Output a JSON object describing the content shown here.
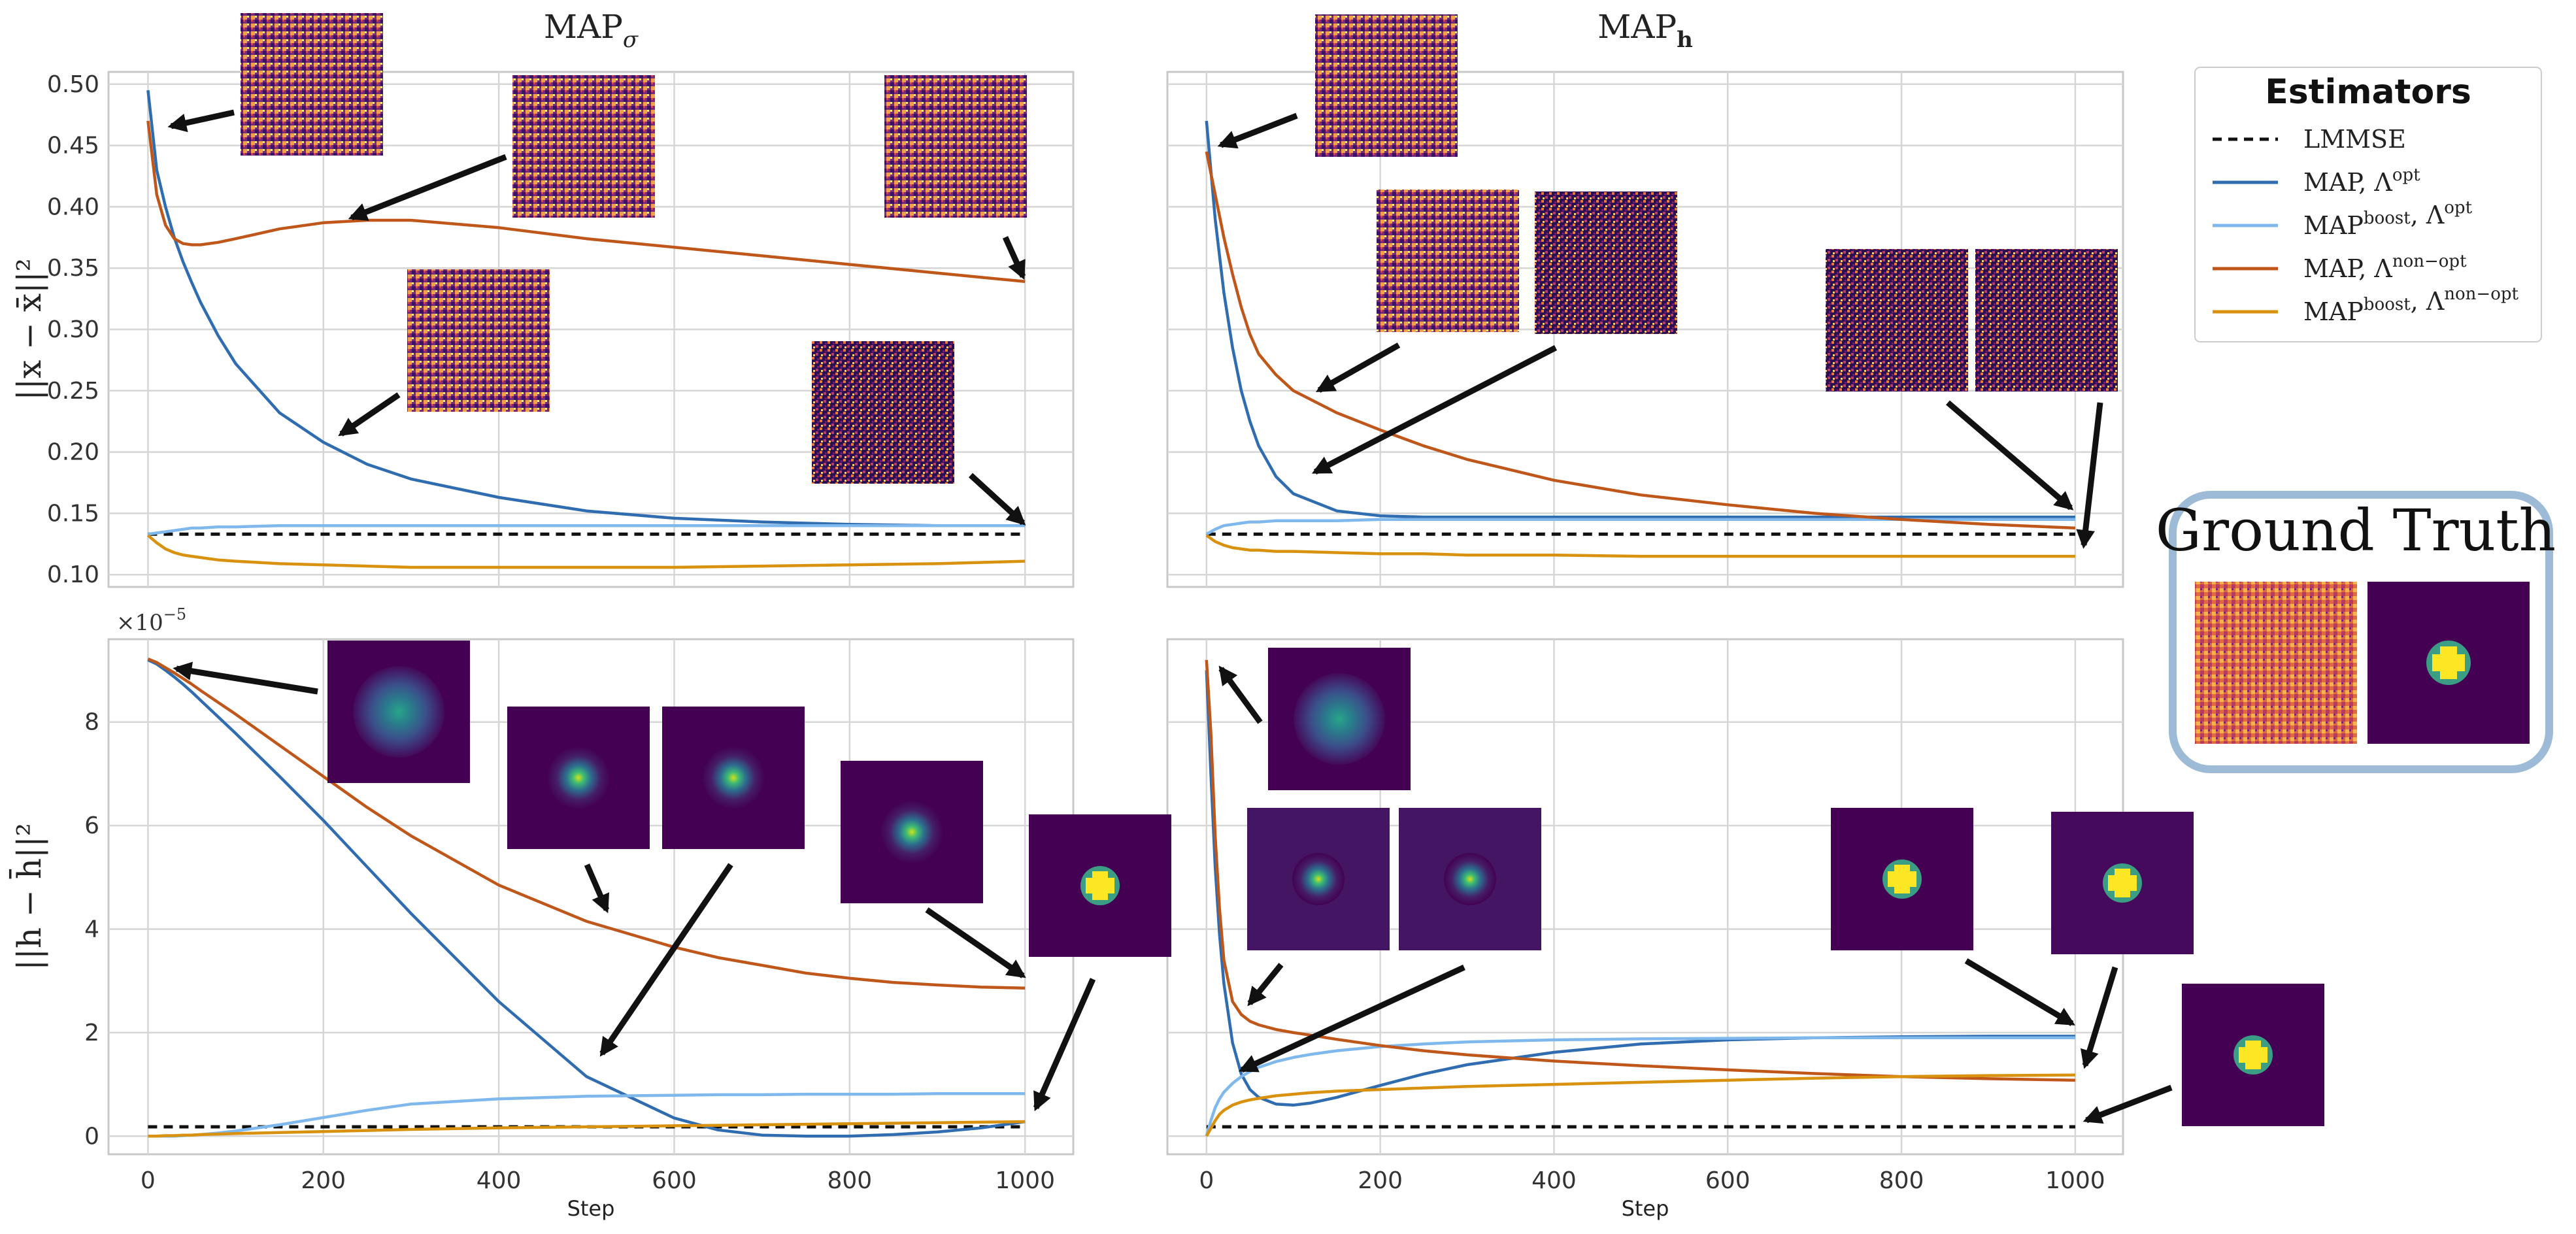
{
  "chart_data": [
    {
      "id": "top-left",
      "type": "line",
      "title": "MAP",
      "title_sub": "σ",
      "ylabel": "||x − x̄||²",
      "xlabel": "",
      "xlim": [
        -45,
        1055
      ],
      "ylim": [
        0.09,
        0.51
      ],
      "xticks": [
        0,
        200,
        400,
        600,
        800,
        1000
      ],
      "show_xticklabels": false,
      "yticks": [
        0.1,
        0.15,
        0.2,
        0.25,
        0.3,
        0.35,
        0.4,
        0.45,
        0.5
      ],
      "ytick_labels": [
        "0.10",
        "0.15",
        "0.20",
        "0.25",
        "0.30",
        "0.35",
        "0.40",
        "0.45",
        "0.50"
      ],
      "x": [
        0,
        10,
        20,
        30,
        40,
        50,
        60,
        80,
        100,
        150,
        200,
        250,
        300,
        400,
        500,
        600,
        700,
        800,
        900,
        1000
      ],
      "series": [
        {
          "name": "LMMSE",
          "values": [
            0.133,
            0.133,
            0.133,
            0.133,
            0.133,
            0.133,
            0.133,
            0.133,
            0.133,
            0.133,
            0.133,
            0.133,
            0.133,
            0.133,
            0.133,
            0.133,
            0.133,
            0.133,
            0.133,
            0.133
          ]
        },
        {
          "name": "MAP, Λopt",
          "values": [
            0.495,
            0.43,
            0.4,
            0.375,
            0.355,
            0.338,
            0.322,
            0.295,
            0.272,
            0.232,
            0.208,
            0.19,
            0.178,
            0.163,
            0.152,
            0.146,
            0.143,
            0.141,
            0.14,
            0.14
          ]
        },
        {
          "name": "MAPboost, Λopt",
          "values": [
            0.133,
            0.134,
            0.135,
            0.136,
            0.137,
            0.138,
            0.138,
            0.139,
            0.139,
            0.14,
            0.14,
            0.14,
            0.14,
            0.14,
            0.14,
            0.14,
            0.14,
            0.14,
            0.14,
            0.14
          ]
        },
        {
          "name": "MAP, Λnon−opt",
          "values": [
            0.47,
            0.41,
            0.385,
            0.374,
            0.37,
            0.369,
            0.369,
            0.371,
            0.374,
            0.382,
            0.387,
            0.389,
            0.389,
            0.383,
            0.374,
            0.367,
            0.36,
            0.353,
            0.346,
            0.339
          ]
        },
        {
          "name": "MAPboost, Λnon−opt",
          "values": [
            0.132,
            0.126,
            0.121,
            0.118,
            0.116,
            0.115,
            0.114,
            0.112,
            0.111,
            0.109,
            0.108,
            0.107,
            0.106,
            0.106,
            0.106,
            0.106,
            0.107,
            0.108,
            0.109,
            0.111
          ]
        }
      ]
    },
    {
      "id": "top-right",
      "type": "line",
      "title": "MAP",
      "title_sub": "h",
      "ylabel": "",
      "xlabel": "",
      "xlim": [
        -45,
        1055
      ],
      "ylim": [
        0.09,
        0.51
      ],
      "xticks": [
        0,
        200,
        400,
        600,
        800,
        1000
      ],
      "show_xticklabels": false,
      "yticks": [
        0.1,
        0.15,
        0.2,
        0.25,
        0.3,
        0.35,
        0.4,
        0.45,
        0.5
      ],
      "ytick_labels": [],
      "x": [
        0,
        10,
        20,
        30,
        40,
        50,
        60,
        80,
        100,
        150,
        200,
        250,
        300,
        400,
        500,
        600,
        700,
        800,
        900,
        1000
      ],
      "series": [
        {
          "name": "LMMSE",
          "values": [
            0.133,
            0.133,
            0.133,
            0.133,
            0.133,
            0.133,
            0.133,
            0.133,
            0.133,
            0.133,
            0.133,
            0.133,
            0.133,
            0.133,
            0.133,
            0.133,
            0.133,
            0.133,
            0.133,
            0.133
          ]
        },
        {
          "name": "MAP, Λopt",
          "values": [
            0.47,
            0.39,
            0.33,
            0.285,
            0.25,
            0.225,
            0.205,
            0.18,
            0.166,
            0.152,
            0.148,
            0.147,
            0.147,
            0.147,
            0.147,
            0.147,
            0.147,
            0.147,
            0.147,
            0.147
          ]
        },
        {
          "name": "MAPboost, Λopt",
          "values": [
            0.133,
            0.137,
            0.14,
            0.141,
            0.142,
            0.143,
            0.143,
            0.144,
            0.144,
            0.144,
            0.145,
            0.145,
            0.145,
            0.145,
            0.145,
            0.145,
            0.145,
            0.145,
            0.145,
            0.145
          ]
        },
        {
          "name": "MAP, Λnon−opt",
          "values": [
            0.445,
            0.41,
            0.375,
            0.345,
            0.318,
            0.296,
            0.28,
            0.263,
            0.25,
            0.232,
            0.218,
            0.205,
            0.194,
            0.177,
            0.165,
            0.157,
            0.15,
            0.145,
            0.141,
            0.138
          ]
        },
        {
          "name": "MAPboost, Λnon−opt",
          "values": [
            0.132,
            0.127,
            0.124,
            0.122,
            0.121,
            0.12,
            0.12,
            0.119,
            0.119,
            0.118,
            0.117,
            0.117,
            0.116,
            0.116,
            0.115,
            0.115,
            0.115,
            0.115,
            0.115,
            0.115
          ]
        }
      ]
    },
    {
      "id": "bottom-left",
      "type": "line",
      "title": "",
      "ylabel": "||h − h̄||²",
      "xlabel": "Step",
      "sci_label": "×10",
      "sci_exp": "−5",
      "xlim": [
        -45,
        1055
      ],
      "ylim": [
        -0.35,
        9.6
      ],
      "xticks": [
        0,
        200,
        400,
        600,
        800,
        1000
      ],
      "show_xticklabels": true,
      "xtick_labels": [
        "0",
        "200",
        "400",
        "600",
        "800",
        "1000"
      ],
      "yticks": [
        0,
        2,
        4,
        6,
        8
      ],
      "ytick_labels": [
        "0",
        "2",
        "4",
        "6",
        "8"
      ],
      "x": [
        0,
        10,
        20,
        30,
        40,
        50,
        60,
        80,
        100,
        150,
        200,
        250,
        300,
        400,
        500,
        600,
        650,
        700,
        750,
        800,
        850,
        900,
        950,
        1000
      ],
      "series": [
        {
          "name": "LMMSE",
          "values": [
            0.18,
            0.18,
            0.18,
            0.18,
            0.18,
            0.18,
            0.18,
            0.18,
            0.18,
            0.18,
            0.18,
            0.18,
            0.18,
            0.18,
            0.18,
            0.18,
            0.18,
            0.18,
            0.18,
            0.18,
            0.18,
            0.18,
            0.18,
            0.18
          ]
        },
        {
          "name": "MAP, Λopt",
          "values": [
            9.2,
            9.12,
            9.0,
            8.87,
            8.73,
            8.58,
            8.42,
            8.1,
            7.78,
            6.95,
            6.1,
            5.2,
            4.3,
            2.6,
            1.15,
            0.35,
            0.12,
            0.02,
            0.0,
            0.0,
            0.03,
            0.08,
            0.16,
            0.28
          ]
        },
        {
          "name": "MAPboost, Λopt",
          "values": [
            0.0,
            0.0,
            0.0,
            0.0,
            0.01,
            0.02,
            0.03,
            0.06,
            0.1,
            0.22,
            0.36,
            0.5,
            0.62,
            0.72,
            0.77,
            0.79,
            0.8,
            0.8,
            0.81,
            0.81,
            0.81,
            0.82,
            0.82,
            0.82
          ]
        },
        {
          "name": "MAP, Λnon−opt",
          "values": [
            9.22,
            9.15,
            9.05,
            8.95,
            8.84,
            8.73,
            8.61,
            8.38,
            8.15,
            7.55,
            6.95,
            6.35,
            5.8,
            4.85,
            4.15,
            3.65,
            3.45,
            3.3,
            3.15,
            3.05,
            2.97,
            2.92,
            2.88,
            2.86
          ]
        },
        {
          "name": "MAPboost, Λnon−opt",
          "values": [
            0.0,
            0.0,
            0.01,
            0.01,
            0.02,
            0.02,
            0.03,
            0.04,
            0.05,
            0.07,
            0.09,
            0.11,
            0.13,
            0.16,
            0.18,
            0.2,
            0.21,
            0.22,
            0.23,
            0.24,
            0.25,
            0.26,
            0.27,
            0.28
          ]
        }
      ]
    },
    {
      "id": "bottom-right",
      "type": "line",
      "title": "",
      "ylabel": "",
      "xlabel": "Step",
      "xlim": [
        -45,
        1055
      ],
      "ylim": [
        -0.35,
        9.6
      ],
      "xticks": [
        0,
        200,
        400,
        600,
        800,
        1000
      ],
      "show_xticklabels": true,
      "xtick_labels": [
        "0",
        "200",
        "400",
        "600",
        "800",
        "1000"
      ],
      "yticks": [
        0,
        2,
        4,
        6,
        8
      ],
      "ytick_labels": [],
      "x": [
        0,
        5,
        10,
        15,
        20,
        30,
        40,
        50,
        60,
        80,
        100,
        120,
        150,
        200,
        250,
        300,
        400,
        500,
        600,
        700,
        800,
        900,
        1000
      ],
      "series": [
        {
          "name": "LMMSE",
          "values": [
            0.18,
            0.18,
            0.18,
            0.18,
            0.18,
            0.18,
            0.18,
            0.18,
            0.18,
            0.18,
            0.18,
            0.18,
            0.18,
            0.18,
            0.18,
            0.18,
            0.18,
            0.18,
            0.18,
            0.18,
            0.18,
            0.18,
            0.18
          ]
        },
        {
          "name": "MAP, Λopt",
          "values": [
            9.0,
            7.0,
            5.2,
            3.9,
            2.95,
            1.8,
            1.2,
            0.9,
            0.75,
            0.62,
            0.6,
            0.64,
            0.75,
            0.98,
            1.2,
            1.38,
            1.62,
            1.78,
            1.86,
            1.9,
            1.92,
            1.93,
            1.93
          ]
        },
        {
          "name": "MAPboost, Λopt",
          "values": [
            0.0,
            0.3,
            0.55,
            0.72,
            0.85,
            1.02,
            1.15,
            1.25,
            1.33,
            1.44,
            1.52,
            1.58,
            1.65,
            1.73,
            1.78,
            1.82,
            1.86,
            1.88,
            1.89,
            1.9,
            1.9,
            1.9,
            1.9
          ]
        },
        {
          "name": "MAP, Λnon−opt",
          "values": [
            9.2,
            7.8,
            5.8,
            4.4,
            3.4,
            2.6,
            2.35,
            2.22,
            2.15,
            2.06,
            2.0,
            1.95,
            1.87,
            1.75,
            1.65,
            1.57,
            1.45,
            1.36,
            1.28,
            1.21,
            1.15,
            1.11,
            1.08
          ]
        },
        {
          "name": "MAPboost, Λnon−opt",
          "values": [
            0.0,
            0.15,
            0.3,
            0.42,
            0.5,
            0.6,
            0.66,
            0.7,
            0.73,
            0.78,
            0.81,
            0.84,
            0.87,
            0.9,
            0.93,
            0.96,
            1.0,
            1.04,
            1.08,
            1.12,
            1.15,
            1.17,
            1.18
          ]
        }
      ]
    }
  ],
  "legend": {
    "title": "Estimators",
    "items": [
      {
        "label": "LMMSE",
        "sup": "",
        "lam": "",
        "lam_sup": "",
        "color": "#111111",
        "dashed": true
      },
      {
        "label": "MAP, ",
        "sup": "",
        "lam": "Λ",
        "lam_sup": "opt",
        "color": "#2f6db0",
        "dashed": false
      },
      {
        "label": "MAP",
        "sup": "boost",
        "lam": ", Λ",
        "lam_sup": "opt",
        "color": "#7fb8ec",
        "dashed": false
      },
      {
        "label": "MAP, ",
        "sup": "",
        "lam": "Λ",
        "lam_sup": "non−opt",
        "color": "#c0571a",
        "dashed": false
      },
      {
        "label": "MAP",
        "sup": "boost",
        "lam": ", Λ",
        "lam_sup": "non−opt",
        "color": "#d8920f",
        "dashed": false
      }
    ]
  },
  "ground_truth": {
    "title": "Ground Truth",
    "border_color": "#9dbbd6"
  },
  "colors": {
    "lmmse": "#111111",
    "map_opt": "#2f6db0",
    "boost_opt": "#7fb8ec",
    "map_nonopt": "#c0571a",
    "boost_nonopt": "#d8920f",
    "grid": "#d6d6d6",
    "frame": "#c8c8c8",
    "arrow": "#111111"
  }
}
